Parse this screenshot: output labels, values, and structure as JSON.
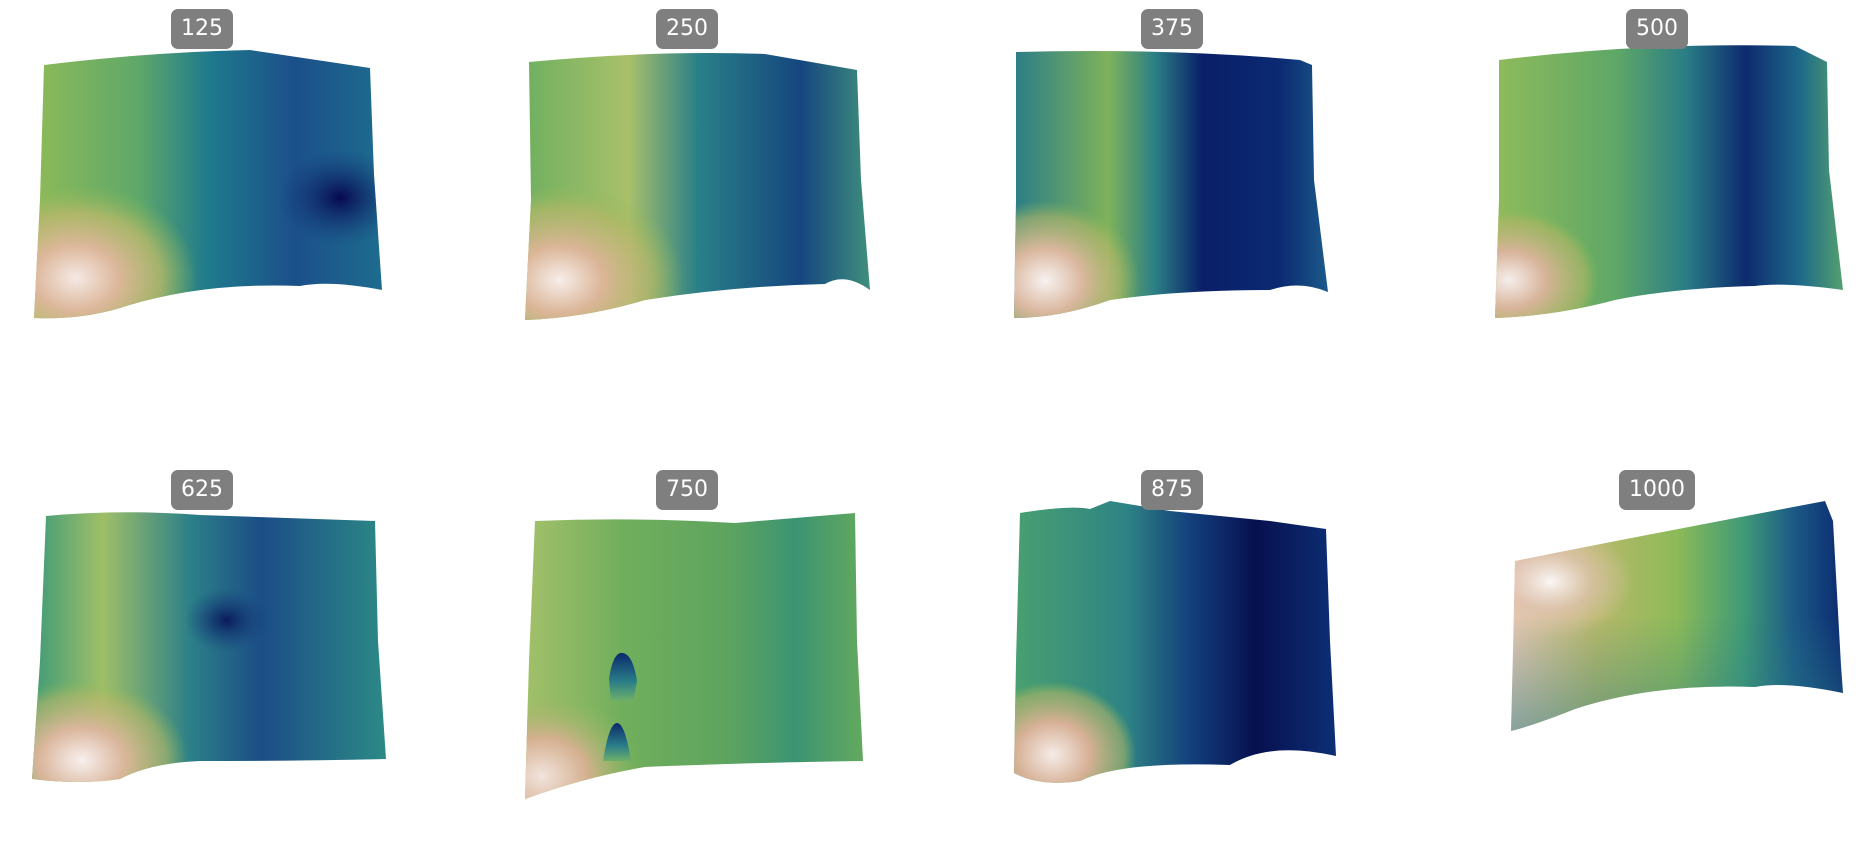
{
  "panels": [
    {
      "label": "125",
      "colormap": "gist_earth"
    },
    {
      "label": "250",
      "colormap": "gist_earth"
    },
    {
      "label": "375",
      "colormap": "gist_earth"
    },
    {
      "label": "500",
      "colormap": "gist_earth"
    },
    {
      "label": "625",
      "colormap": "gist_earth"
    },
    {
      "label": "750",
      "colormap": "gist_earth"
    },
    {
      "label": "875",
      "colormap": "gist_earth"
    },
    {
      "label": "1000",
      "colormap": "gist_earth"
    }
  ]
}
